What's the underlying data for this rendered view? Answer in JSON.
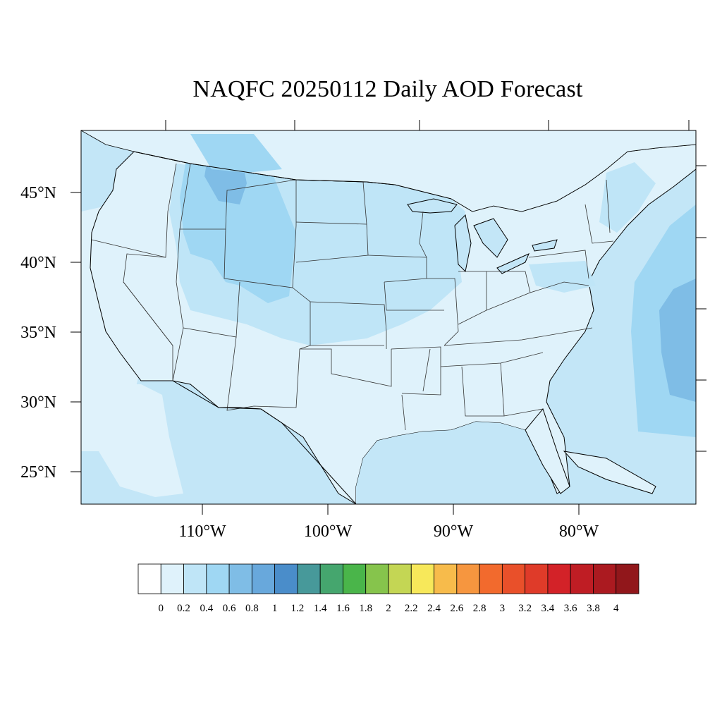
{
  "title": "NAQFC 20250112 Daily AOD Forecast",
  "map": {
    "lat_labels": [
      "45°N",
      "40°N",
      "35°N",
      "30°N",
      "25°N"
    ],
    "lon_labels": [
      "110°W",
      "100°W",
      "90°W",
      "80°W"
    ]
  },
  "colorbar": {
    "labels": [
      "0",
      "0.2",
      "0.4",
      "0.6",
      "0.8",
      "1",
      "1.2",
      "1.4",
      "1.6",
      "1.8",
      "2",
      "2.2",
      "2.4",
      "2.6",
      "2.8",
      "3",
      "3.2",
      "3.4",
      "3.6",
      "3.8",
      "4"
    ],
    "colors": [
      "#ffffff",
      "#dff2fb",
      "#bfe5f7",
      "#9fd7f3",
      "#7fbde6",
      "#68a8dc",
      "#4a8dca",
      "#47999a",
      "#45a66e",
      "#4ab54a",
      "#86c44c",
      "#c4d654",
      "#f7e85a",
      "#f7bb4b",
      "#f6963f",
      "#f26a2d",
      "#e9502a",
      "#df3b29",
      "#d32228",
      "#bf1d24",
      "#ab1a20",
      "#91171b"
    ]
  },
  "colors": {
    "ocean_base": "#c3e6f7",
    "land_low": "#dff2fb",
    "land_mid": "#bfe5f7",
    "land_high": "#9fd7f3",
    "plume": "#7fbde6"
  }
}
